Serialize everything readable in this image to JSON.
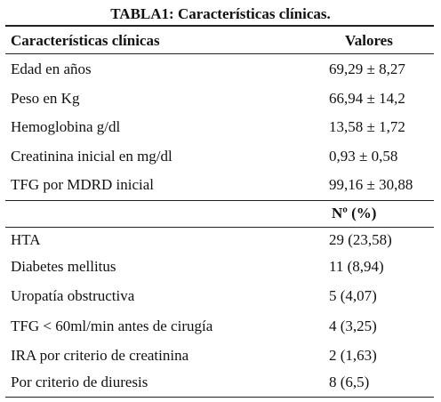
{
  "title": "TABLA1: Características clínicas.",
  "table": {
    "header": [
      "Características clínicas",
      "Valores"
    ],
    "rows": [
      [
        "Edad en años",
        "69,29 ± 8,27"
      ],
      [
        "Peso en Kg",
        "66,94 ± 14,2"
      ],
      [
        "Hemoglobina g/dl",
        "13,58 ± 1,72"
      ],
      [
        "Creatinina inicial en mg/dl",
        "0,93 ± 0,58"
      ],
      [
        "TFG por MDRD inicial",
        "99,16 ± 30,88"
      ]
    ],
    "subheader": "Nº (%)",
    "rows2": [
      [
        "HTA",
        "29 (23,58)"
      ],
      [
        "Diabetes mellitus",
        "11 (8,94)"
      ],
      [
        "Uropatía obstructiva",
        "5 (4,07)"
      ],
      [
        "TFG < 60ml/min antes de cirugía",
        "4 (3,25)"
      ],
      [
        "IRA por criterio de creatinina",
        "2 (1,63)"
      ],
      [
        "Por criterio de diuresis",
        "8 (6,5)"
      ]
    ]
  }
}
